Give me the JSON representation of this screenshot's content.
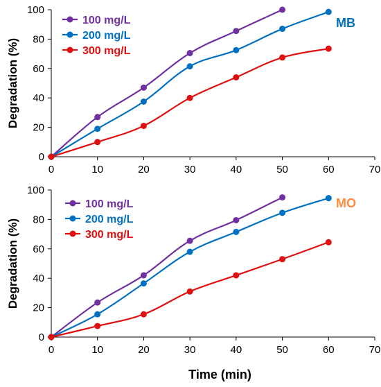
{
  "chart_data": [
    {
      "type": "line",
      "tag": "MB",
      "tag_color": "#0070C0",
      "xlabel": "",
      "ylabel": "Degradation (%)",
      "xlim": [
        0,
        70
      ],
      "ylim": [
        0,
        100
      ],
      "xticks": [
        "0",
        "10",
        "20",
        "30",
        "40",
        "50",
        "60",
        "70"
      ],
      "yticks": [
        "0",
        "20",
        "40",
        "60",
        "80",
        "100"
      ],
      "grid": false,
      "legend": "top-left",
      "series": [
        {
          "name": "100 mg/L",
          "color": "#7030A0",
          "x": [
            0,
            10,
            20,
            30,
            40,
            50
          ],
          "y": [
            0,
            27,
            47,
            70.5,
            85.5,
            100
          ]
        },
        {
          "name": "200 mg/L",
          "color": "#0070C0",
          "x": [
            0,
            10,
            20,
            30,
            40,
            50,
            60
          ],
          "y": [
            0,
            19,
            37.5,
            61.5,
            72.5,
            87,
            98.5
          ]
        },
        {
          "name": "300 mg/L",
          "color": "#E01010",
          "x": [
            0,
            10,
            20,
            30,
            40,
            50,
            60
          ],
          "y": [
            0,
            10,
            21,
            40,
            54,
            67.5,
            73.5
          ]
        }
      ]
    },
    {
      "type": "line",
      "tag": "MO",
      "tag_color": "#FF8C40",
      "xlabel": "Time (min)",
      "ylabel": "Degradation (%)",
      "xlim": [
        0,
        70
      ],
      "ylim": [
        0,
        100
      ],
      "xticks": [
        "0",
        "10",
        "20",
        "30",
        "40",
        "50",
        "60",
        "70"
      ],
      "yticks": [
        "0",
        "20",
        "40",
        "60",
        "80",
        "100"
      ],
      "grid": false,
      "legend": "top-left",
      "series": [
        {
          "name": "100 mg/L",
          "color": "#7030A0",
          "x": [
            0,
            10,
            20,
            30,
            40,
            50
          ],
          "y": [
            0,
            23.5,
            42,
            65.5,
            79.5,
            95
          ]
        },
        {
          "name": "200 mg/L",
          "color": "#0070C0",
          "x": [
            0,
            10,
            20,
            30,
            40,
            50,
            60
          ],
          "y": [
            0,
            15.5,
            36.5,
            58,
            71.5,
            84.5,
            94.5
          ]
        },
        {
          "name": "300 mg/L",
          "color": "#E01010",
          "x": [
            0,
            10,
            20,
            30,
            40,
            50,
            60
          ],
          "y": [
            0,
            7.5,
            15.5,
            31,
            42,
            53,
            64.5
          ]
        }
      ]
    }
  ]
}
